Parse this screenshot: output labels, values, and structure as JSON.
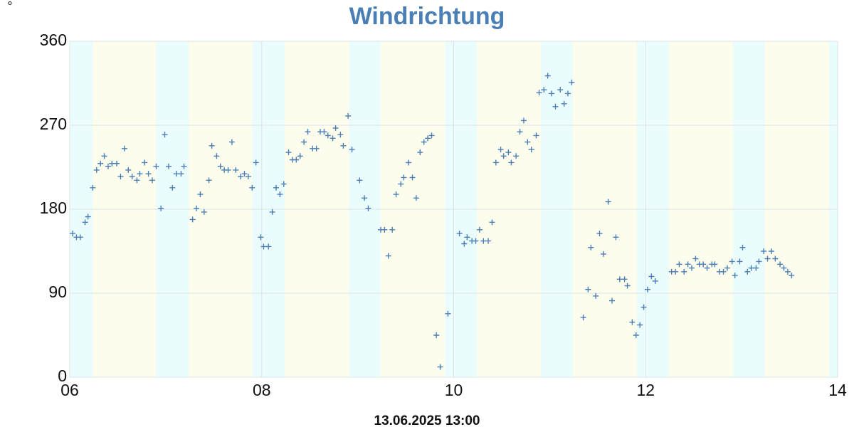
{
  "chart_data": {
    "type": "scatter",
    "title": "Windrichtung",
    "y_label": "°",
    "footer": "13.06.2025 13:00",
    "xlim": [
      6,
      14
    ],
    "xticks": [
      {
        "value": 6,
        "label": "06"
      },
      {
        "value": 8,
        "label": "08"
      },
      {
        "value": 10,
        "label": "10"
      },
      {
        "value": 12,
        "label": "12"
      },
      {
        "value": 14,
        "label": "14"
      }
    ],
    "ylim": [
      0,
      360
    ],
    "yticks": [
      0,
      90,
      180,
      270,
      360
    ],
    "grid": true,
    "day_color": "#fdfdee",
    "night_color": "#eafcfc",
    "night_bands": [
      [
        6,
        6.24
      ],
      [
        6.9,
        7.24
      ],
      [
        7.9,
        8.24
      ],
      [
        8.91,
        9.24
      ],
      [
        9.91,
        10.24
      ],
      [
        10.91,
        11.24
      ],
      [
        11.91,
        12.24
      ],
      [
        12.91,
        13.24
      ],
      [
        13.91,
        14
      ]
    ],
    "x": [
      6.03,
      6.07,
      6.11,
      6.16,
      6.19,
      6.24,
      6.28,
      6.32,
      6.36,
      6.4,
      6.44,
      6.49,
      6.53,
      6.57,
      6.61,
      6.65,
      6.7,
      6.73,
      6.78,
      6.82,
      6.86,
      6.9,
      6.95,
      6.99,
      7.03,
      7.07,
      7.11,
      7.16,
      7.19,
      7.28,
      7.32,
      7.36,
      7.4,
      7.45,
      7.48,
      7.53,
      7.57,
      7.61,
      7.65,
      7.69,
      7.73,
      7.78,
      7.82,
      7.86,
      7.9,
      7.94,
      7.99,
      8.02,
      8.07,
      8.11,
      8.15,
      8.19,
      8.23,
      8.28,
      8.32,
      8.36,
      8.4,
      8.44,
      8.48,
      8.53,
      8.57,
      8.61,
      8.65,
      8.69,
      8.74,
      8.77,
      8.82,
      8.85,
      8.9,
      8.94,
      9.02,
      9.07,
      9.11,
      9.24,
      9.28,
      9.32,
      9.36,
      9.4,
      9.45,
      9.48,
      9.53,
      9.57,
      9.61,
      9.65,
      9.69,
      9.73,
      9.77,
      9.82,
      9.86,
      9.94,
      10.06,
      10.11,
      10.14,
      10.19,
      10.23,
      10.27,
      10.31,
      10.36,
      10.4,
      10.44,
      10.49,
      10.52,
      10.57,
      10.6,
      10.65,
      10.69,
      10.73,
      10.77,
      10.81,
      10.86,
      10.89,
      10.94,
      10.98,
      11.02,
      11.06,
      11.11,
      11.15,
      11.19,
      11.23,
      11.35,
      11.4,
      11.43,
      11.48,
      11.52,
      11.56,
      11.61,
      11.65,
      11.69,
      11.73,
      11.78,
      11.81,
      11.86,
      11.9,
      11.94,
      11.98,
      12.02,
      12.06,
      12.1,
      12.27,
      12.31,
      12.35,
      12.4,
      12.44,
      12.48,
      12.52,
      12.56,
      12.6,
      12.64,
      12.69,
      12.72,
      12.77,
      12.81,
      12.85,
      12.9,
      12.93,
      12.98,
      13.01,
      13.06,
      13.1,
      13.15,
      13.18,
      13.23,
      13.27,
      13.31,
      13.35,
      13.4,
      13.44,
      13.48,
      13.52
    ],
    "series": [
      {
        "color": "#4a7fb5",
        "values": [
          154,
          150,
          150,
          166,
          172,
          203,
          222,
          229,
          237,
          226,
          229,
          229,
          215,
          245,
          222,
          215,
          211,
          218,
          230,
          218,
          211,
          226,
          181,
          260,
          226,
          203,
          218,
          218,
          226,
          169,
          181,
          196,
          177,
          211,
          248,
          237,
          226,
          222,
          222,
          252,
          222,
          215,
          218,
          215,
          203,
          230,
          150,
          140,
          140,
          177,
          203,
          196,
          207,
          241,
          233,
          233,
          237,
          252,
          263,
          245,
          245,
          263,
          263,
          259,
          256,
          267,
          260,
          248,
          280,
          244,
          211,
          192,
          181,
          158,
          158,
          130,
          158,
          196,
          207,
          214,
          230,
          214,
          192,
          241,
          252,
          256,
          259,
          45,
          11,
          68,
          154,
          143,
          150,
          146,
          146,
          158,
          146,
          146,
          166,
          230,
          244,
          237,
          241,
          230,
          237,
          263,
          275,
          252,
          244,
          259,
          305,
          308,
          323,
          304,
          290,
          308,
          293,
          304,
          316,
          64,
          94,
          139,
          87,
          154,
          132,
          188,
          82,
          150,
          105,
          105,
          98,
          59,
          45,
          56,
          75,
          94,
          108,
          103,
          113,
          113,
          121,
          113,
          121,
          117,
          127,
          121,
          121,
          117,
          121,
          121,
          113,
          113,
          117,
          124,
          109,
          124,
          139,
          113,
          117,
          117,
          124,
          135,
          127,
          135,
          127,
          121,
          117,
          113,
          109
        ]
      }
    ]
  }
}
